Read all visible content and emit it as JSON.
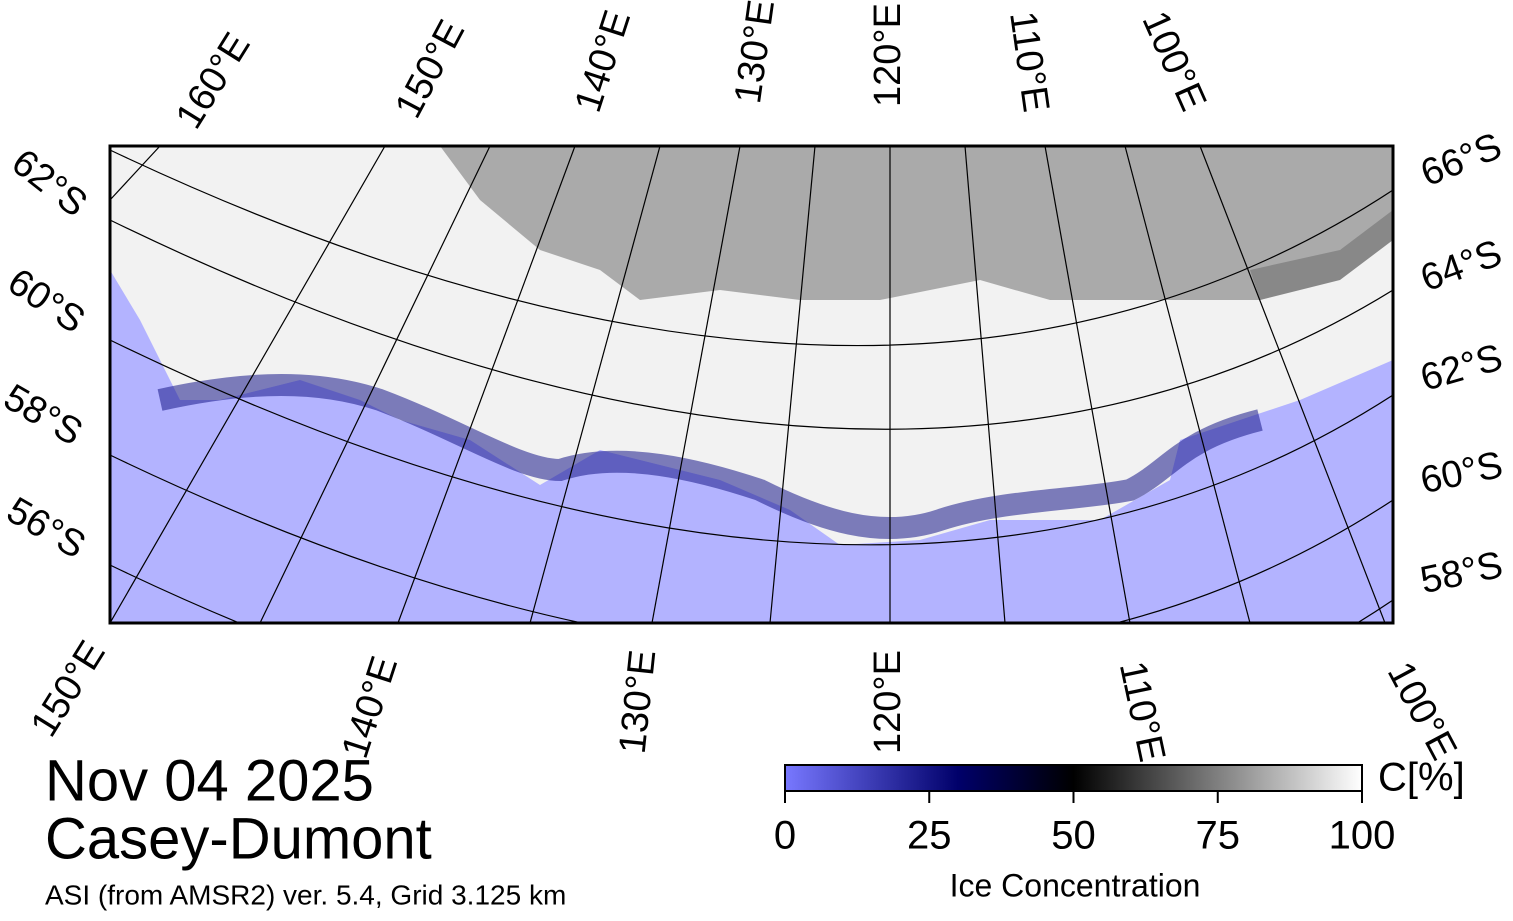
{
  "map": {
    "top_labels": [
      "160°E",
      "150°E",
      "140°E",
      "130°E",
      "120°E",
      "110°E",
      "100°E"
    ],
    "bottom_labels": [
      "150°E",
      "140°E",
      "130°E",
      "120°E",
      "110°E",
      "100°E"
    ],
    "left_labels": [
      "62°S",
      "60°S",
      "58°S",
      "56°S"
    ],
    "right_labels": [
      "66°S",
      "64°S",
      "62°S",
      "60°S",
      "58°S"
    ],
    "date": "Nov 04 2025",
    "region": "Casey-Dumont",
    "source": "ASI (from AMSR2) ver. 5.4,  Grid 3.125 km"
  },
  "colorbar": {
    "label": "Ice Concentration",
    "unit": "C[%]",
    "lim": [
      0,
      100
    ],
    "ticks": [
      0,
      25,
      50,
      75,
      100
    ]
  }
}
